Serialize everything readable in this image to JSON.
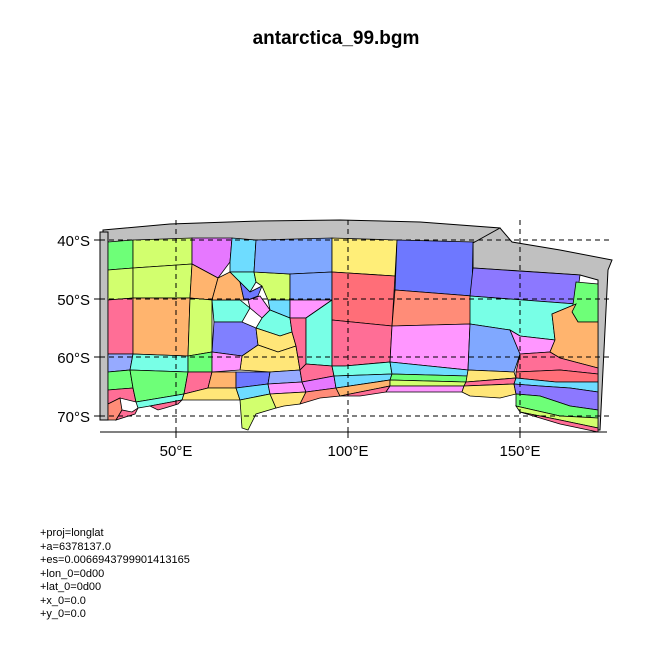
{
  "title": "antarctica_99.bgm",
  "map": {
    "x_ticks": [
      "50°E",
      "100°E",
      "150°E"
    ],
    "y_ticks": [
      "40°S",
      "50°S",
      "60°S",
      "70°S"
    ],
    "palette": [
      "#ff6e96",
      "#ffe678",
      "#6e78ff",
      "#ff96ff",
      "#78ffe6",
      "#ffb46e",
      "#6eff78",
      "#96aaff",
      "#d2ff6e",
      "#ff8c78",
      "#e678ff",
      "#6edcff"
    ],
    "land_color": "#c0c0c0"
  },
  "proj_lines": [
    "+proj=longlat",
    "+a=6378137.0",
    "+es=0.0066943799901413165",
    "+lon_0=0d00",
    "+lat_0=0d00",
    "+x_0=0.0",
    "+y_0=0.0"
  ]
}
